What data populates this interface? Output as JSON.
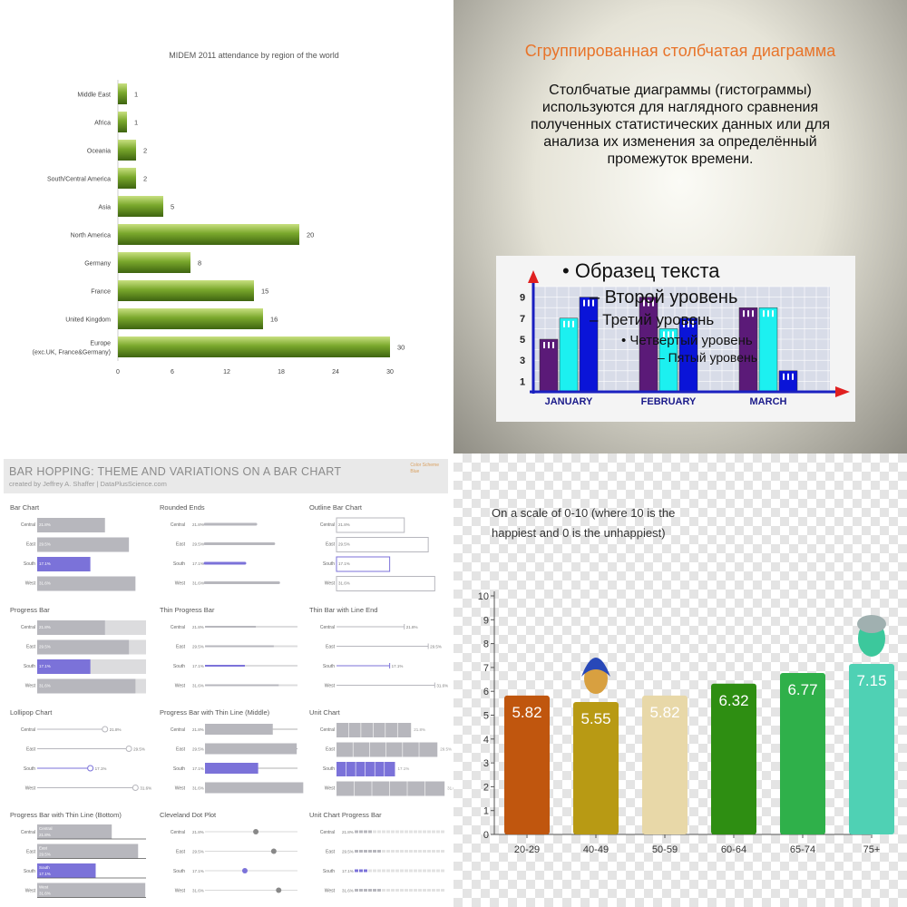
{
  "colors": {
    "q1_bar": "#7aa82c",
    "q2_bar1": "#5b1a78",
    "q2_bar2": "#1cf0f0",
    "q2_bar3": "#0a14d8",
    "q3_grey": "#b7b7bd",
    "q3_highlight": "#7b72d9",
    "q4_orange": "#c0560e"
  },
  "q2": {
    "title": "Сгруппированная столбчатая диаграмма",
    "text": "Столбчатые диаграммы (гистограммы) используются для наглядного сравнения полученных статистических данных или для анализа их изменения за определённый промежуток времени.",
    "outline": [
      {
        "text": "• Образец текста",
        "level": 1
      },
      {
        "text": "– Второй уровень",
        "level": 2
      },
      {
        "text": "– Третий уровень",
        "level": 3
      },
      {
        "text": "• Четвертый уровень",
        "level": 4
      },
      {
        "text": "– Пятый уровень",
        "level": 5
      }
    ]
  },
  "q3": {
    "title": "BAR HOPPING: THEME AND VARIATIONS ON A BAR CHART",
    "subtitle": "created by Jeffrey A. Shaffer | DataPlusScience.com",
    "legend": [
      "Color Scheme",
      "Blue"
    ]
  },
  "q4": {
    "caption": "On a scale of 0-10 (where 10 is the happiest and 0 is the unhappiest)"
  },
  "chart_data": [
    {
      "type": "bar",
      "orientation": "horizontal",
      "title": "MIDEM 2011 attendance by region of the world",
      "categories": [
        "Middle East",
        "Africa",
        "Oceania",
        "South/Central America",
        "Asia",
        "North America",
        "Germany",
        "France",
        "United Kingdom",
        "Europe (exc.UK, France&Germany)"
      ],
      "values": [
        1,
        1,
        2,
        2,
        5,
        20,
        8,
        15,
        16,
        30
      ],
      "xlim": [
        0,
        30
      ],
      "xticks": [
        0,
        6,
        12,
        18,
        24,
        30
      ],
      "grid": false
    },
    {
      "type": "bar",
      "categories": [
        "JANUARY",
        "FEBRUARY",
        "MARCH"
      ],
      "series": [
        {
          "values": [
            5,
            9,
            8
          ]
        },
        {
          "values": [
            7,
            6,
            8
          ]
        },
        {
          "values": [
            9,
            7,
            2
          ]
        }
      ],
      "ylim": [
        0,
        10
      ],
      "yticks": [
        1,
        3,
        5,
        7,
        9
      ],
      "grid": true
    },
    {
      "type": "bar",
      "small_multiples": true,
      "categories": [
        "Central",
        "East",
        "South",
        "West"
      ],
      "values": [
        21.8,
        29.5,
        17.1,
        31.6
      ],
      "labels": [
        "21.8%",
        "29.5%",
        "17.1%",
        "31.6%"
      ],
      "highlight": "South",
      "panels": [
        "Bar Chart",
        "Rounded Ends",
        "Outline Bar Chart",
        "Progress Bar",
        "Thin Progress Bar",
        "Thin Bar with Line End",
        "Lollipop Chart",
        "Progress Bar with Thin Line (Middle)",
        "Unit Chart",
        "Progress Bar with Thin Line (Bottom)",
        "Cleveland Dot Plot",
        "Unit Chart Progress Bar"
      ]
    },
    {
      "type": "bar",
      "categories": [
        "20-29",
        "40-49",
        "50-59",
        "60-64",
        "65-74",
        "75+"
      ],
      "values": [
        5.82,
        5.55,
        5.82,
        6.32,
        6.77,
        7.15
      ],
      "labels": [
        "5.82",
        "5.55",
        "5.82",
        "6.32",
        "6.77",
        "7.15"
      ],
      "colors": [
        "#c0560e",
        "#b89a14",
        "#e8d8a8",
        "#2e8e12",
        "#2fb04a",
        "#4fd1b4"
      ],
      "ylim": [
        0,
        10
      ],
      "yticks": [
        0,
        1,
        2,
        3,
        4,
        5,
        6,
        7,
        8,
        9,
        10
      ],
      "grid": false
    }
  ]
}
